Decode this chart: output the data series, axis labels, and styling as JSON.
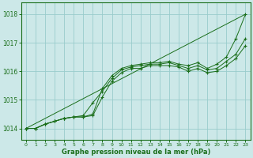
{
  "background_color": "#cce8e8",
  "plot_bg_color": "#cce8e8",
  "grid_color": "#99cccc",
  "line_color": "#1a6e1a",
  "marker_color": "#1a6e1a",
  "xlabel": "Graphe pression niveau de la mer (hPa)",
  "xlim": [
    -0.5,
    23.5
  ],
  "ylim": [
    1013.6,
    1018.4
  ],
  "yticks": [
    1014,
    1015,
    1016,
    1017,
    1018
  ],
  "xticks": [
    0,
    1,
    2,
    3,
    4,
    5,
    6,
    7,
    8,
    9,
    10,
    11,
    12,
    13,
    14,
    15,
    16,
    17,
    18,
    19,
    20,
    21,
    22,
    23
  ],
  "series": [
    {
      "x": [
        0,
        1,
        2,
        3,
        4,
        5,
        6,
        7,
        8,
        9,
        10,
        11,
        12,
        13,
        14,
        15,
        16,
        17,
        18,
        19,
        20,
        21,
        22,
        23
      ],
      "y": [
        1014.0,
        1014.0,
        1014.15,
        1014.25,
        1014.35,
        1014.4,
        1014.4,
        1014.5,
        1015.4,
        1015.85,
        1016.1,
        1016.2,
        1016.25,
        1016.3,
        1016.3,
        1016.35,
        1016.25,
        1016.2,
        1016.3,
        1016.1,
        1016.25,
        1016.5,
        1017.15,
        1018.0
      ]
    },
    {
      "x": [
        0,
        1,
        2,
        3,
        4,
        5,
        6,
        7,
        8,
        9,
        10,
        11,
        12,
        13,
        14,
        15,
        16,
        17,
        18,
        19,
        20,
        21,
        22,
        23
      ],
      "y": [
        1014.0,
        1014.0,
        1014.15,
        1014.25,
        1014.35,
        1014.4,
        1014.45,
        1014.9,
        1015.3,
        1015.75,
        1016.05,
        1016.15,
        1016.2,
        1016.25,
        1016.25,
        1016.3,
        1016.2,
        1016.1,
        1016.2,
        1016.05,
        1016.1,
        1016.35,
        1016.6,
        1017.15
      ]
    },
    {
      "x": [
        0,
        1,
        2,
        3,
        4,
        5,
        6,
        7,
        8,
        9,
        10,
        11,
        12,
        13,
        14,
        15,
        16,
        17,
        18,
        19,
        20,
        21,
        22,
        23
      ],
      "y": [
        1014.0,
        1014.0,
        1014.15,
        1014.25,
        1014.35,
        1014.4,
        1014.4,
        1014.45,
        1015.1,
        1015.65,
        1015.95,
        1016.1,
        1016.1,
        1016.2,
        1016.2,
        1016.2,
        1016.15,
        1016.0,
        1016.1,
        1015.95,
        1016.0,
        1016.2,
        1016.45,
        1016.9
      ]
    },
    {
      "x": [
        0,
        23
      ],
      "y": [
        1014.0,
        1018.0
      ]
    }
  ]
}
